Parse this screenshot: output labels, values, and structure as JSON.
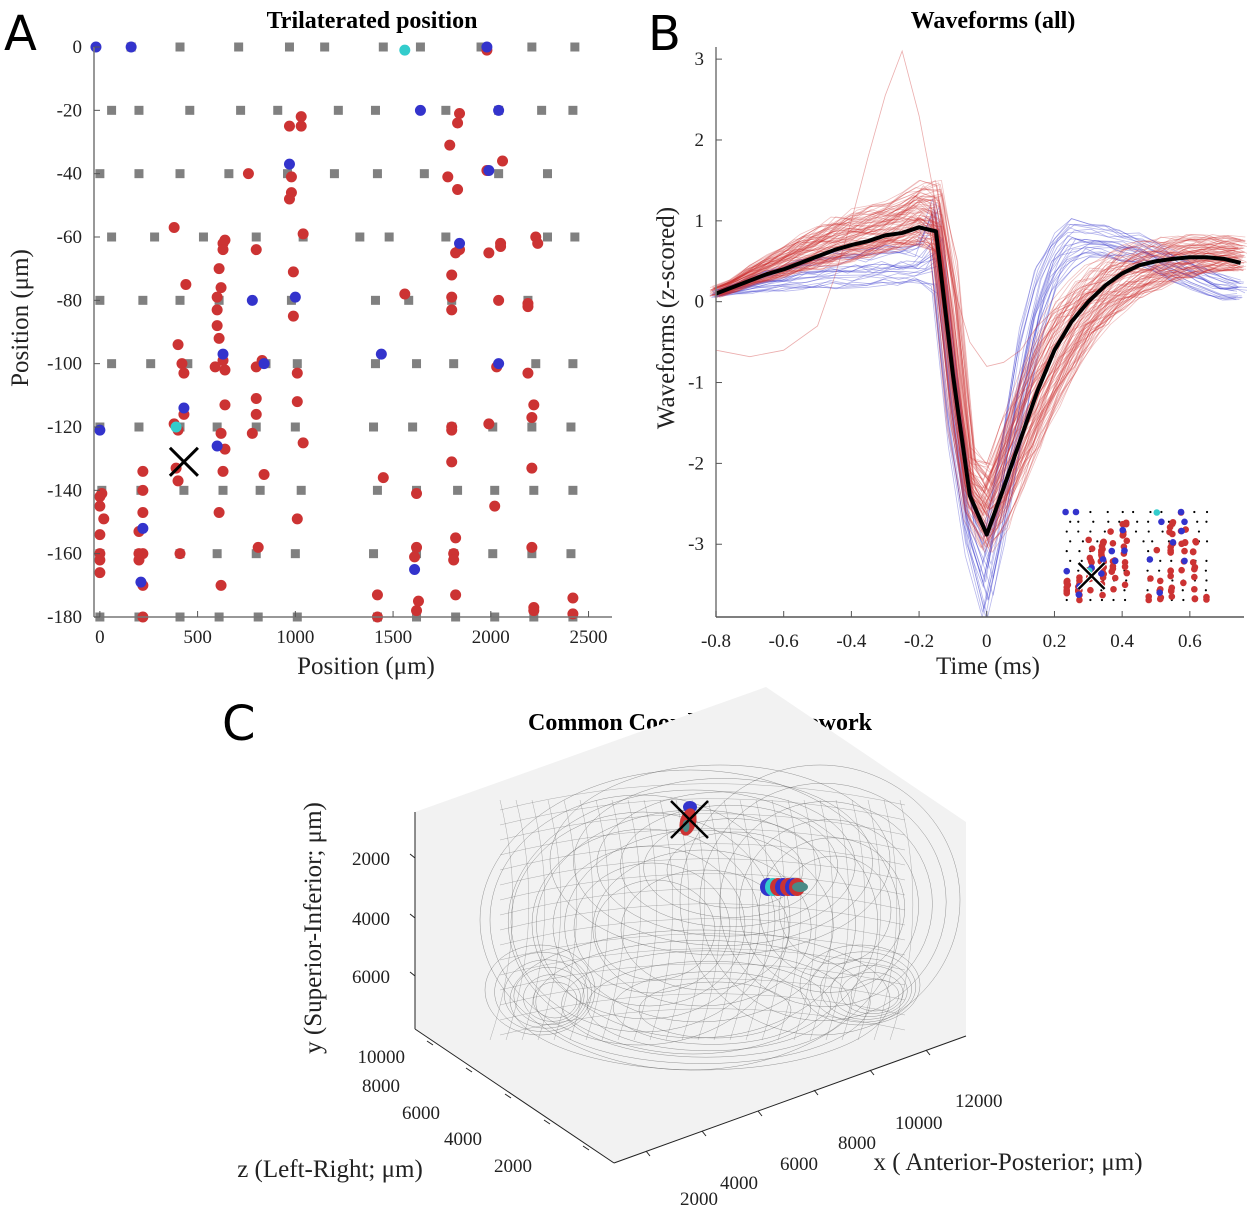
{
  "panels": {
    "A": {
      "letter": "A"
    },
    "B": {
      "letter": "B"
    },
    "C": {
      "letter": "C"
    }
  },
  "chart_data": [
    {
      "id": "A",
      "type": "scatter",
      "title": "Trilaterated position",
      "xlabel": "Position (μm)",
      "ylabel": "Position (μm)",
      "xlim": [
        -30,
        2620
      ],
      "ylim": [
        -180,
        0
      ],
      "xticks": [
        0,
        500,
        1000,
        1500,
        2000,
        2500
      ],
      "xtick_labels": [
        "0",
        "500",
        "1000",
        "1500",
        "2000",
        "2500"
      ],
      "yticks": [
        0,
        -20,
        -40,
        -60,
        -80,
        -100,
        -120,
        -140,
        -160,
        -180
      ],
      "ytick_labels": [
        "0",
        "-20",
        "-40",
        "-60",
        "-80",
        "-100",
        "-120",
        "-140",
        "-160",
        "-180"
      ],
      "grid": false,
      "electrode_sites": {
        "color": "#808080",
        "rows": [
          {
            "y": 0,
            "x": [
              160,
              410,
              710,
              970,
              1150,
              1450,
              1640,
              1950,
              2210,
              2430
            ]
          },
          {
            "y": -20,
            "x": [
              60,
              200,
              460,
              720,
              910,
              1220,
              1410,
              1770,
              2040,
              2260,
              2420
            ]
          },
          {
            "y": -40,
            "x": [
              0,
              200,
              410,
              660,
              960,
              1200,
              1420,
              1660,
              2040,
              2290
            ]
          },
          {
            "y": -60,
            "x": [
              60,
              280,
              530,
              800,
              1040,
              1330,
              1480,
              1770,
              2290,
              2430
            ]
          },
          {
            "y": -80,
            "x": [
              0,
              220,
              410,
              610,
              980,
              1410,
              1580,
              1800,
              2190
            ]
          },
          {
            "y": -100,
            "x": [
              60,
              260,
              450,
              850,
              1010,
              1410,
              1620,
              1810,
              2230,
              2420
            ]
          },
          {
            "y": -120,
            "x": [
              0,
              200,
              410,
              600,
              800,
              1000,
              1400,
              1600,
              1800,
              2010,
              2210,
              2410
            ]
          },
          {
            "y": -140,
            "x": [
              10,
              210,
              430,
              630,
              820,
              1030,
              1420,
              1620,
              1830,
              2020,
              2220,
              2420
            ]
          },
          {
            "y": -160,
            "x": [
              0,
              200,
              410,
              600,
              800,
              1000,
              1400,
              1620,
              1810,
              2010,
              2210,
              2410
            ]
          },
          {
            "y": -180,
            "x": [
              0,
              200,
              410,
              610,
              810,
              1010,
              1420,
              1620,
              1820,
              2020,
              2220,
              2420
            ]
          }
        ]
      },
      "series": [
        {
          "name": "blue units",
          "color": "#3333cc",
          "points": [
            [
              -20,
              0
            ],
            [
              160,
              0
            ],
            [
              1980,
              0
            ],
            [
              1640,
              -20
            ],
            [
              2040,
              -20
            ],
            [
              970,
              -37
            ],
            [
              1990,
              -39
            ],
            [
              1840,
              -62
            ],
            [
              780,
              -80
            ],
            [
              1000,
              -79
            ],
            [
              630,
              -97
            ],
            [
              840,
              -100
            ],
            [
              1440,
              -97
            ],
            [
              2040,
              -100
            ],
            [
              0,
              -121
            ],
            [
              430,
              -114
            ],
            [
              600,
              -126
            ],
            [
              220,
              -152
            ],
            [
              210,
              -169
            ],
            [
              1610,
              -165
            ]
          ]
        },
        {
          "name": "cyan units",
          "color": "#33cccc",
          "points": [
            [
              1560,
              -1
            ],
            [
              390,
              -120
            ]
          ]
        },
        {
          "name": "red units",
          "color": "#cc3333",
          "points": [
            [
              1980,
              -1
            ],
            [
              1030,
              -22
            ],
            [
              1030,
              -25
            ],
            [
              970,
              -25
            ],
            [
              1840,
              -21
            ],
            [
              1830,
              -24
            ],
            [
              1790,
              -31
            ],
            [
              2060,
              -36
            ],
            [
              1980,
              -39
            ],
            [
              1780,
              -41
            ],
            [
              1830,
              -45
            ],
            [
              760,
              -40
            ],
            [
              980,
              -41
            ],
            [
              980,
              -46
            ],
            [
              970,
              -48
            ],
            [
              380,
              -57
            ],
            [
              440,
              -75
            ],
            [
              640,
              -61
            ],
            [
              630,
              -62
            ],
            [
              630,
              -64
            ],
            [
              610,
              -70
            ],
            [
              620,
              -76
            ],
            [
              600,
              -79
            ],
            [
              600,
              -83
            ],
            [
              600,
              -88
            ],
            [
              610,
              -92
            ],
            [
              800,
              -64
            ],
            [
              990,
              -71
            ],
            [
              1040,
              -59
            ],
            [
              990,
              -85
            ],
            [
              1560,
              -78
            ],
            [
              1800,
              -72
            ],
            [
              1800,
              -79
            ],
            [
              1800,
              -83
            ],
            [
              1840,
              -64
            ],
            [
              1820,
              -65
            ],
            [
              1990,
              -65
            ],
            [
              2050,
              -62
            ],
            [
              2050,
              -63
            ],
            [
              2230,
              -60
            ],
            [
              2240,
              -62
            ],
            [
              2040,
              -80
            ],
            [
              2190,
              -81
            ],
            [
              2190,
              -82
            ],
            [
              400,
              -94
            ],
            [
              420,
              -100
            ],
            [
              430,
              -103
            ],
            [
              630,
              -99
            ],
            [
              640,
              -102
            ],
            [
              590,
              -101
            ],
            [
              640,
              -113
            ],
            [
              830,
              -99
            ],
            [
              800,
              -101
            ],
            [
              1010,
              -103
            ],
            [
              1010,
              -112
            ],
            [
              800,
              -111
            ],
            [
              800,
              -116
            ],
            [
              780,
              -122
            ],
            [
              1040,
              -125
            ],
            [
              2030,
              -101
            ],
            [
              2190,
              -103
            ],
            [
              2220,
              -113
            ],
            [
              2210,
              -117
            ],
            [
              1990,
              -119
            ],
            [
              1800,
              -120
            ],
            [
              1800,
              -121
            ],
            [
              380,
              -119
            ],
            [
              400,
              -121
            ],
            [
              620,
              -122
            ],
            [
              640,
              -127
            ],
            [
              430,
              -116
            ],
            [
              390,
              -133
            ],
            [
              400,
              -137
            ],
            [
              220,
              -134
            ],
            [
              220,
              -140
            ],
            [
              630,
              -134
            ],
            [
              840,
              -135
            ],
            [
              1450,
              -136
            ],
            [
              1800,
              -131
            ],
            [
              2210,
              -133
            ],
            [
              1620,
              -141
            ],
            [
              2020,
              -145
            ],
            [
              610,
              -147
            ],
            [
              1010,
              -149
            ],
            [
              0,
              -142
            ],
            [
              10,
              -141
            ],
            [
              0,
              -145
            ],
            [
              20,
              -149
            ],
            [
              0,
              -154
            ],
            [
              0,
              -160
            ],
            [
              0,
              -162
            ],
            [
              0,
              -166
            ],
            [
              200,
              -153
            ],
            [
              220,
              -147
            ],
            [
              200,
              -160
            ],
            [
              220,
              -160
            ],
            [
              200,
              -162
            ],
            [
              220,
              -170
            ],
            [
              410,
              -160
            ],
            [
              620,
              -170
            ],
            [
              810,
              -158
            ],
            [
              1620,
              -158
            ],
            [
              1610,
              -161
            ],
            [
              1820,
              -155
            ],
            [
              1810,
              -160
            ],
            [
              1810,
              -162
            ],
            [
              2210,
              -158
            ],
            [
              1420,
              -173
            ],
            [
              1420,
              -180
            ],
            [
              1630,
              -175
            ],
            [
              1620,
              -178
            ],
            [
              1820,
              -173
            ],
            [
              2220,
              -177
            ],
            [
              2220,
              -178
            ],
            [
              2420,
              -174
            ],
            [
              2420,
              -179
            ],
            [
              220,
              -180
            ]
          ]
        }
      ],
      "annotations": [
        {
          "marker": "x",
          "x": 430,
          "y": -131,
          "color": "#000000"
        }
      ]
    },
    {
      "id": "B",
      "type": "line",
      "title": "Waveforms (all)",
      "xlabel": "Time (ms)",
      "ylabel": "Waveforms (z-scored)",
      "xlim": [
        -0.8,
        0.76
      ],
      "ylim": [
        -3.9,
        3.15
      ],
      "xticks": [
        -0.8,
        -0.6,
        -0.4,
        -0.2,
        0,
        0.2,
        0.4,
        0.6
      ],
      "xtick_labels": [
        "-0.8",
        "-0.6",
        "-0.4",
        "-0.2",
        "0",
        "0.2",
        "0.4",
        "0.6"
      ],
      "yticks": [
        3,
        2,
        1,
        0,
        -1,
        -2,
        -3
      ],
      "ytick_labels": [
        "3",
        "2",
        "1",
        "0",
        "-1",
        "-2",
        "-3"
      ],
      "grid": false,
      "time": [
        -0.8,
        -0.75,
        -0.7,
        -0.65,
        -0.6,
        -0.55,
        -0.5,
        -0.45,
        -0.4,
        -0.35,
        -0.3,
        -0.25,
        -0.2,
        -0.15,
        -0.1,
        -0.05,
        0,
        0.05,
        0.1,
        0.15,
        0.2,
        0.25,
        0.3,
        0.35,
        0.4,
        0.45,
        0.5,
        0.55,
        0.6,
        0.65,
        0.7,
        0.75
      ],
      "series": [
        {
          "name": "mean",
          "color": "#000000",
          "values": [
            0.1,
            0.18,
            0.26,
            0.34,
            0.4,
            0.48,
            0.56,
            0.64,
            0.7,
            0.75,
            0.82,
            0.85,
            0.92,
            0.87,
            -0.9,
            -2.4,
            -2.88,
            -2.3,
            -1.7,
            -1.1,
            -0.6,
            -0.25,
            0.0,
            0.2,
            0.35,
            0.45,
            0.5,
            0.53,
            0.55,
            0.55,
            0.53,
            0.48
          ]
        },
        {
          "name": "red units (example envelope)",
          "color": "#cc3333",
          "count_estimate": 110,
          "values_high": [
            0.2,
            0.3,
            0.45,
            0.58,
            0.7,
            0.85,
            0.95,
            1.05,
            1.15,
            1.2,
            1.25,
            1.35,
            1.5,
            1.5,
            0.5,
            -1.8,
            -2.0,
            -1.4,
            -0.8,
            -0.35,
            0.0,
            0.25,
            0.45,
            0.6,
            0.7,
            0.75,
            0.8,
            0.82,
            0.83,
            0.83,
            0.82,
            0.8
          ],
          "values_low": [
            0.05,
            0.12,
            0.2,
            0.25,
            0.3,
            0.35,
            0.4,
            0.45,
            0.5,
            0.55,
            0.6,
            0.65,
            0.7,
            0.6,
            -1.6,
            -2.7,
            -3.1,
            -2.8,
            -2.3,
            -1.8,
            -1.3,
            -0.9,
            -0.55,
            -0.3,
            -0.1,
            0.05,
            0.15,
            0.25,
            0.3,
            0.35,
            0.38,
            0.38
          ]
        },
        {
          "name": "blue units (example envelope)",
          "color": "#3333cc",
          "count_estimate": 25,
          "values_high": [
            0.15,
            0.22,
            0.3,
            0.38,
            0.45,
            0.52,
            0.58,
            0.62,
            0.65,
            0.68,
            0.7,
            0.72,
            0.75,
            1.3,
            -0.5,
            -2.3,
            -2.7,
            -1.5,
            -0.3,
            0.5,
            0.9,
            1.05,
            1.0,
            0.95,
            0.9,
            0.85,
            0.75,
            0.65,
            0.55,
            0.45,
            0.35,
            0.3
          ],
          "values_low": [
            0.05,
            0.08,
            0.1,
            0.12,
            0.13,
            0.14,
            0.15,
            0.16,
            0.17,
            0.18,
            0.19,
            0.2,
            0.2,
            0.1,
            -1.8,
            -3.2,
            -3.9,
            -3.0,
            -1.8,
            -0.6,
            0.1,
            0.4,
            0.55,
            0.55,
            0.5,
            0.45,
            0.35,
            0.25,
            0.15,
            0.08,
            0.02,
            0.0
          ]
        }
      ],
      "inset": {
        "description": "miniature copy of panel A probe layout with unit positions",
        "position": "bottom-right"
      }
    },
    {
      "id": "C",
      "type": "scatter",
      "title": "Common Coordinate Framework",
      "xlabel": "x ( Anterior-Posterior; μm)",
      "ylabel": "y (Superior-Inferior; μm)",
      "zlabel": "z (Left-Right; μm)",
      "xtick_labels": [
        "2000",
        "4000",
        "6000",
        "8000",
        "10000",
        "12000"
      ],
      "ytick_labels": [
        "2000",
        "4000",
        "6000"
      ],
      "ztick_labels": [
        "10000",
        "8000",
        "6000",
        "4000",
        "2000"
      ],
      "xticks": [
        2000,
        4000,
        6000,
        8000,
        10000,
        12000
      ],
      "yticks": [
        2000,
        4000,
        6000
      ],
      "zticks": [
        10000,
        8000,
        6000,
        4000,
        2000
      ],
      "clusters": [
        {
          "name": "probe 1 units",
          "colors": [
            "#3333cc",
            "#cc3333",
            "#4a8a86"
          ],
          "marked": true
        },
        {
          "name": "probe 2 units",
          "colors": [
            "#33cccc",
            "#3333cc",
            "#cc3333",
            "#4a8a86"
          ],
          "marked": false
        }
      ],
      "background": "brain mesh wireframe"
    }
  ]
}
